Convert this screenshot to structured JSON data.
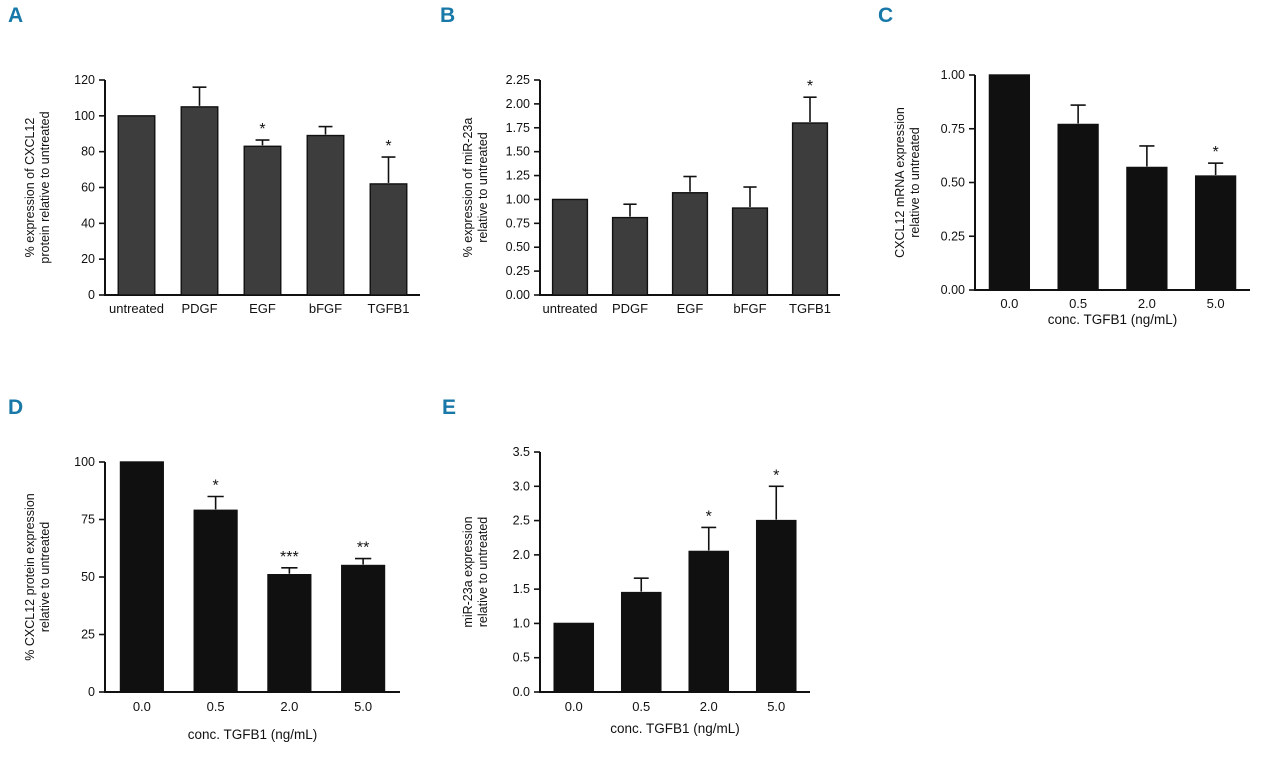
{
  "figure": {
    "background_color": "#ffffff",
    "panel_label_color": "#1878a8",
    "axis_color": "#111111"
  },
  "chart_data": [
    {
      "id": "A",
      "panel_label": "A",
      "type": "bar",
      "categories": [
        "untreated",
        "PDGF",
        "EGF",
        "bFGF",
        "TGFB1"
      ],
      "values": [
        100,
        105,
        83,
        89,
        62
      ],
      "errors": [
        0,
        11,
        3.5,
        5,
        15
      ],
      "significance": [
        "",
        "",
        "*",
        "",
        "*"
      ],
      "ylabel_lines": [
        "% expression of CXCL12",
        "protein relative to untreated"
      ],
      "xlabel": "",
      "ylim": [
        0,
        120
      ],
      "ytick_labels": [
        "0",
        "20",
        "40",
        "60",
        "80",
        "100",
        "120"
      ],
      "bar_color": "#3d3d3d",
      "grid": false,
      "legend": "none"
    },
    {
      "id": "B",
      "panel_label": "B",
      "type": "bar",
      "categories": [
        "untreated",
        "PDGF",
        "EGF",
        "bFGF",
        "TGFB1"
      ],
      "values": [
        1.0,
        0.81,
        1.07,
        0.91,
        1.8
      ],
      "errors": [
        0,
        0.14,
        0.17,
        0.22,
        0.27
      ],
      "significance": [
        "",
        "",
        "",
        "",
        "*"
      ],
      "ylabel_lines": [
        "% expression of miR-23a",
        "relative to untreated"
      ],
      "xlabel": "",
      "ylim": [
        0,
        2.25
      ],
      "ytick_labels": [
        "0.00",
        "0.25",
        "0.50",
        "0.75",
        "1.00",
        "1.25",
        "1.50",
        "1.75",
        "2.00",
        "2.25"
      ],
      "bar_color": "#3d3d3d",
      "grid": false,
      "legend": "none"
    },
    {
      "id": "C",
      "panel_label": "C",
      "type": "bar",
      "categories": [
        "0.0",
        "0.5",
        "2.0",
        "5.0"
      ],
      "values": [
        1.0,
        0.77,
        0.57,
        0.53
      ],
      "errors": [
        0,
        0.09,
        0.1,
        0.06
      ],
      "significance": [
        "",
        "",
        "",
        "*"
      ],
      "ylabel_lines": [
        "CXCL12 mRNA expression",
        "relative to untreated"
      ],
      "xlabel": "conc. TGFB1 (ng/mL)",
      "ylim": [
        0,
        1.0
      ],
      "ytick_labels": [
        "0.00",
        "0.25",
        "0.50",
        "0.75",
        "1.00"
      ],
      "bar_color": "#101010",
      "grid": false,
      "legend": "none"
    },
    {
      "id": "D",
      "panel_label": "D",
      "type": "bar",
      "categories": [
        "0.0",
        "0.5",
        "2.0",
        "5.0"
      ],
      "values": [
        100,
        79,
        51,
        55
      ],
      "errors": [
        0,
        6,
        3,
        3
      ],
      "significance": [
        "",
        "*",
        "***",
        "**"
      ],
      "ylabel_lines": [
        "% CXCL12 protein expression",
        "relative to untreated"
      ],
      "xlabel": "conc. TGFB1 (ng/mL)",
      "ylim": [
        0,
        100
      ],
      "ytick_labels": [
        "0",
        "25",
        "50",
        "75",
        "100"
      ],
      "bar_color": "#101010",
      "grid": false,
      "legend": "none"
    },
    {
      "id": "E",
      "panel_label": "E",
      "type": "bar",
      "categories": [
        "0.0",
        "0.5",
        "2.0",
        "5.0"
      ],
      "values": [
        1.0,
        1.45,
        2.05,
        2.5
      ],
      "errors": [
        0,
        0.21,
        0.35,
        0.5
      ],
      "significance": [
        "",
        "",
        "*",
        "*"
      ],
      "ylabel_lines": [
        "miR-23a expression",
        "relative to untreated"
      ],
      "xlabel": "conc. TGFB1 (ng/mL)",
      "ylim": [
        0,
        3.5
      ],
      "ytick_labels": [
        "0.0",
        "0.5",
        "1.0",
        "1.5",
        "2.0",
        "2.5",
        "3.0",
        "3.5"
      ],
      "bar_color": "#101010",
      "grid": false,
      "legend": "none"
    }
  ]
}
